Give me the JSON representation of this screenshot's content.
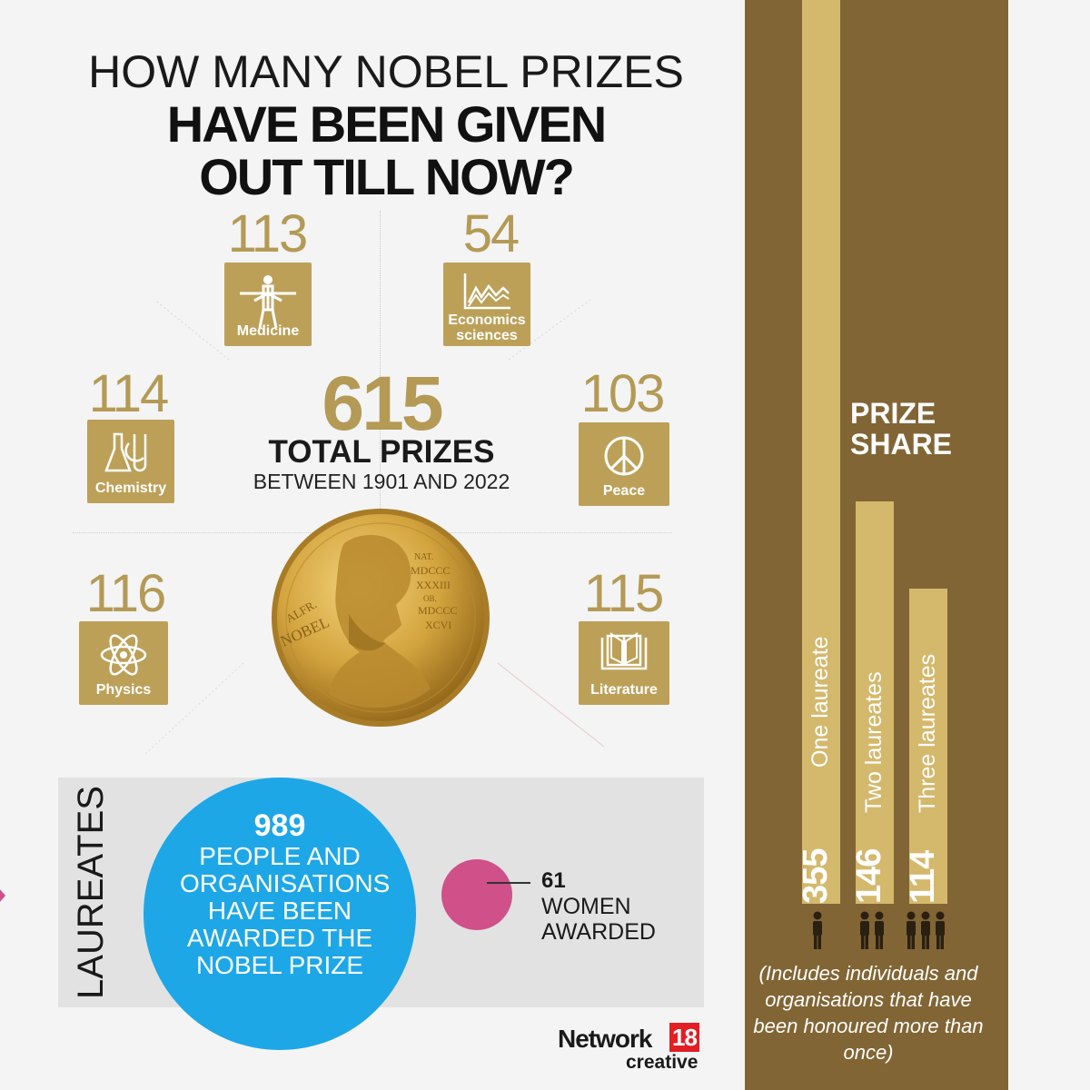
{
  "title": {
    "line1": "HOW MANY NOBEL PRIZES",
    "line2": "HAVE BEEN GIVEN",
    "line3": "OUT TILL NOW?"
  },
  "categories": [
    {
      "name": "Medicine",
      "count": "113",
      "icon": "human-figure-icon"
    },
    {
      "name": "Economics sciences",
      "count": "54",
      "icon": "line-chart-icon"
    },
    {
      "name": "Chemistry",
      "count": "114",
      "icon": "flask-icon"
    },
    {
      "name": "Peace",
      "count": "103",
      "icon": "peace-icon"
    },
    {
      "name": "Physics",
      "count": "116",
      "icon": "atom-icon"
    },
    {
      "name": "Literature",
      "count": "115",
      "icon": "book-icon"
    }
  ],
  "total": {
    "number": "615",
    "label": "TOTAL PRIZES",
    "subtitle": "BETWEEN 1901 AND 2022"
  },
  "medal": {
    "inscription_left": "ALFR. NOBEL",
    "inscription_right": "NAT. MDCCC XXXIII OB. MDCCC XCVI"
  },
  "laureates": {
    "heading": "LAUREATES",
    "count": "989",
    "description": "PEOPLE AND ORGANISATIONS HAVE BEEN AWARDED THE NOBEL PRIZE",
    "women_count": "61",
    "women_label": "WOMEN AWARDED"
  },
  "prize_share": {
    "heading_line1": "PRIZE",
    "heading_line2": "SHARE",
    "bars": [
      {
        "count": "355",
        "label": "One laureate",
        "people": 1
      },
      {
        "count": "146",
        "label": "Two laureates",
        "people": 2
      },
      {
        "count": "114",
        "label": "Three laureates",
        "people": 3
      }
    ],
    "footnote": "(Includes individuals and organisations that have been honoured more than once)"
  },
  "logo": {
    "network": "Network",
    "number": "18",
    "creative": "creative"
  },
  "colors": {
    "gold": "#bda058",
    "gold_text": "#b49a55",
    "brown_panel": "#826534",
    "bar_gold": "#d4b86c",
    "blue": "#1da7e7",
    "pink": "#d0508a",
    "logo_red": "#e31e24"
  }
}
